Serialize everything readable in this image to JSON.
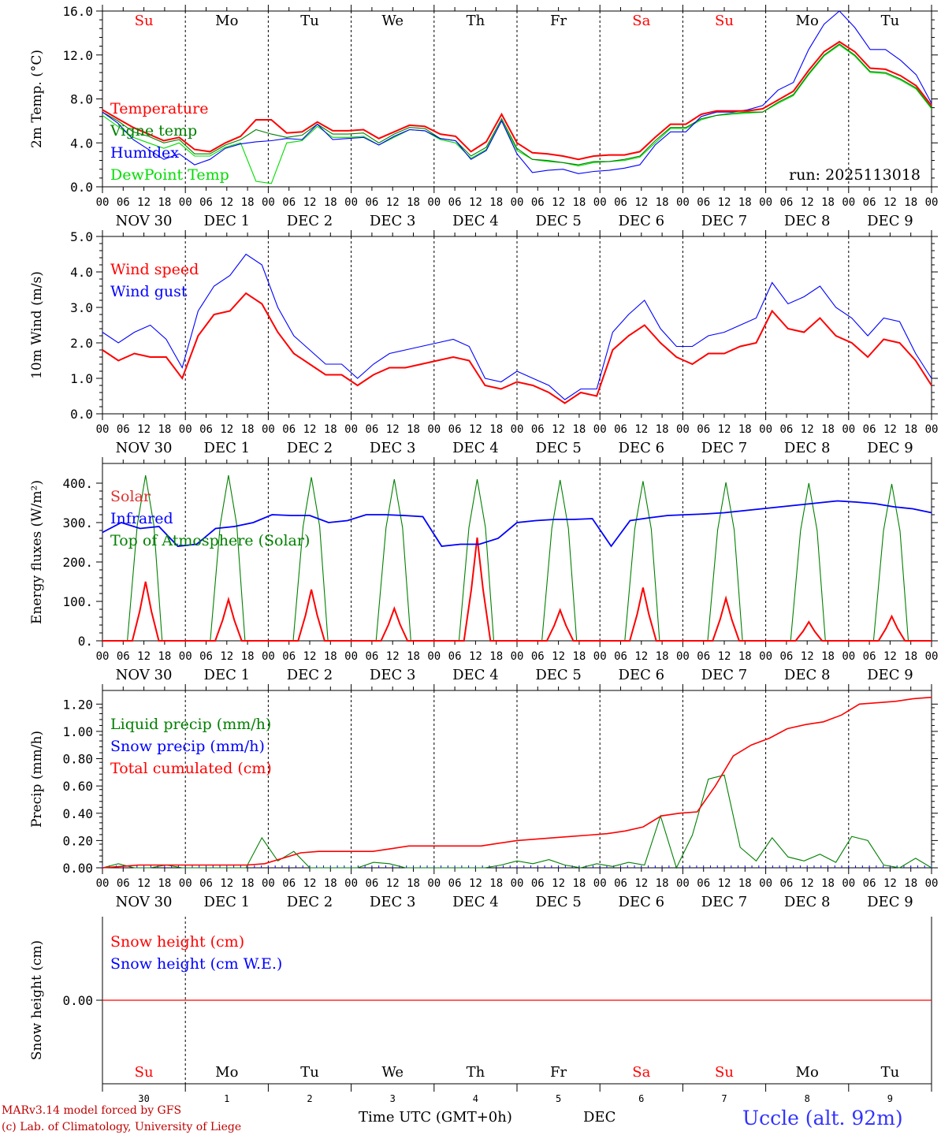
{
  "footer": {
    "model_line": "MARv3.14 model forced by GFS",
    "lab_line": "(c) Lab. of Climatology, University of Liege",
    "xlabel": "Time UTC (GMT+0h)",
    "month": "DEC",
    "station": "Uccle (alt. 92m)"
  },
  "colors": {
    "red": "#ff0000",
    "green": "#008000",
    "blue": "#0000ff",
    "lightgreen": "#00dd00"
  },
  "chart_data": [
    {
      "type": "line",
      "id": "temp",
      "title": "",
      "ylabel": "2m Temp. (°C)",
      "ylim": [
        0,
        16
      ],
      "yticks": [
        "0.0",
        "4.0",
        "8.0",
        "12.0",
        "16.0"
      ],
      "run_label": "run: 2025113018",
      "day_names": [
        "Su",
        "Mo",
        "Tu",
        "We",
        "Th",
        "Fr",
        "Sa",
        "Su",
        "Mo",
        "Tu"
      ],
      "hour_ticks": [
        "00",
        "06",
        "12",
        "18"
      ],
      "date_labels": [
        "NOV 30",
        "DEC  1",
        "DEC  2",
        "DEC  3",
        "DEC  4",
        "DEC  5",
        "DEC  6",
        "DEC  7",
        "DEC  8",
        "DEC  9"
      ],
      "legend": [
        "Temperature",
        "Vigne temp",
        "Humidex",
        "DewPoint Temp"
      ],
      "series": [
        {
          "name": "Temperature",
          "color": "red",
          "values": [
            7.0,
            6.2,
            5.4,
            4.8,
            4.2,
            4.5,
            3.4,
            3.2,
            4.0,
            4.6,
            6.1,
            6.1,
            4.9,
            5.0,
            5.9,
            5.1,
            5.1,
            5.2,
            4.4,
            5.0,
            5.6,
            5.5,
            4.8,
            4.6,
            3.2,
            4.1,
            6.6,
            4.0,
            3.1,
            3.0,
            2.8,
            2.5,
            2.8,
            2.9,
            2.9,
            3.2,
            4.5,
            5.7,
            5.7,
            6.6,
            6.9,
            6.9,
            6.9,
            7.1,
            7.9,
            8.7,
            10.6,
            12.3,
            13.2,
            12.3,
            10.8,
            10.7,
            10.1,
            9.2,
            7.4
          ]
        },
        {
          "name": "Vigne temp",
          "color": "green",
          "values": [
            6.8,
            6.0,
            5.0,
            4.6,
            4.0,
            4.3,
            3.0,
            3.0,
            3.8,
            4.3,
            5.2,
            4.8,
            4.5,
            4.7,
            5.7,
            4.8,
            4.8,
            4.9,
            4.0,
            4.8,
            5.4,
            5.3,
            4.4,
            4.2,
            2.8,
            3.6,
            6.2,
            3.5,
            2.5,
            2.4,
            2.2,
            2.0,
            2.3,
            2.3,
            2.5,
            2.8,
            4.2,
            5.4,
            5.4,
            6.2,
            6.5,
            6.7,
            6.8,
            6.8,
            7.7,
            8.4,
            10.3,
            12.0,
            13.0,
            12.0,
            10.5,
            10.4,
            9.8,
            9.0,
            7.2
          ]
        },
        {
          "name": "Humidex",
          "color": "blue",
          "values": [
            6.8,
            5.8,
            4.3,
            3.4,
            2.5,
            3.0,
            2.0,
            2.5,
            3.5,
            3.9,
            4.1,
            4.2,
            4.4,
            4.3,
            5.7,
            4.3,
            4.4,
            4.5,
            3.8,
            4.6,
            5.2,
            5.1,
            4.4,
            4.2,
            2.5,
            3.3,
            6.0,
            3.0,
            1.3,
            1.5,
            1.6,
            1.2,
            1.4,
            1.5,
            1.7,
            2.0,
            3.8,
            5.0,
            5.0,
            6.4,
            6.8,
            6.8,
            7.0,
            7.4,
            8.8,
            9.5,
            12.5,
            14.8,
            16.0,
            14.5,
            12.5,
            12.5,
            11.5,
            10.2,
            7.6
          ]
        },
        {
          "name": "DewPoint Temp",
          "color": "lightgreen",
          "values": [
            6.5,
            5.5,
            4.5,
            4.0,
            3.5,
            4.0,
            2.8,
            2.8,
            3.6,
            4.0,
            0.5,
            0.3,
            4.0,
            4.2,
            5.5,
            4.5,
            4.5,
            4.6,
            3.8,
            4.5,
            5.2,
            5.1,
            4.3,
            4.0,
            2.6,
            3.4,
            6.0,
            3.3,
            2.5,
            2.3,
            2.2,
            1.9,
            2.2,
            2.3,
            2.4,
            2.7,
            4.0,
            5.3,
            5.3,
            6.1,
            6.5,
            6.6,
            6.7,
            6.8,
            7.6,
            8.3,
            10.2,
            11.9,
            12.9,
            11.9,
            10.4,
            10.3,
            9.7,
            8.9,
            7.1
          ]
        }
      ]
    },
    {
      "type": "line",
      "id": "wind",
      "ylabel": "10m Wind (m/s)",
      "ylim": [
        0,
        5
      ],
      "yticks": [
        "0.0",
        "1.0",
        "2.0",
        "3.0",
        "4.0",
        "5.0"
      ],
      "hour_ticks": [
        "00",
        "06",
        "12",
        "18"
      ],
      "date_labels": [
        "NOV 30",
        "DEC  1",
        "DEC  2",
        "DEC  3",
        "DEC  4",
        "DEC  5",
        "DEC  6",
        "DEC  7",
        "DEC  8",
        "DEC  9"
      ],
      "legend": [
        "Wind speed",
        "Wind gust"
      ],
      "series": [
        {
          "name": "Wind speed",
          "color": "red",
          "values": [
            1.8,
            1.5,
            1.7,
            1.6,
            1.6,
            1.0,
            2.2,
            2.8,
            2.9,
            3.4,
            3.1,
            2.3,
            1.7,
            1.4,
            1.1,
            1.1,
            0.8,
            1.1,
            1.3,
            1.3,
            1.4,
            1.5,
            1.6,
            1.5,
            0.8,
            0.7,
            0.9,
            0.8,
            0.6,
            0.3,
            0.6,
            0.5,
            1.8,
            2.2,
            2.5,
            2.0,
            1.6,
            1.4,
            1.7,
            1.7,
            1.9,
            2.0,
            2.9,
            2.4,
            2.3,
            2.7,
            2.2,
            2.0,
            1.6,
            2.1,
            2.0,
            1.5,
            0.8
          ]
        },
        {
          "name": "Wind gust",
          "color": "blue",
          "values": [
            2.3,
            2.0,
            2.3,
            2.5,
            2.1,
            1.3,
            2.9,
            3.6,
            3.9,
            4.5,
            4.2,
            3.0,
            2.2,
            1.8,
            1.4,
            1.4,
            1.0,
            1.4,
            1.7,
            1.8,
            1.9,
            2.0,
            2.1,
            1.9,
            1.0,
            0.9,
            1.2,
            1.0,
            0.8,
            0.4,
            0.7,
            0.7,
            2.3,
            2.8,
            3.2,
            2.4,
            1.9,
            1.9,
            2.2,
            2.3,
            2.5,
            2.7,
            3.7,
            3.1,
            3.3,
            3.6,
            3.0,
            2.7,
            2.2,
            2.7,
            2.6,
            1.7,
            1.0
          ]
        }
      ]
    },
    {
      "type": "line",
      "id": "flux",
      "ylabel": "Energy fluxes (W/m²)",
      "ylim": [
        0,
        450
      ],
      "yticks": [
        "0.",
        "100.",
        "200.",
        "300.",
        "400."
      ],
      "hour_ticks": [
        "00",
        "06",
        "12",
        "18"
      ],
      "date_labels": [
        "NOV 30",
        "DEC  1",
        "DEC  2",
        "DEC  3",
        "DEC  4",
        "DEC  5",
        "DEC  6",
        "DEC  7",
        "DEC  8",
        "DEC  9"
      ],
      "legend": [
        "Solar",
        "Infrared",
        "Top of Atmosphere (Solar)"
      ],
      "toa_peaks": [
        420,
        420,
        415,
        410,
        410,
        408,
        405,
        402,
        400,
        398
      ],
      "solar_peaks": [
        150,
        105,
        130,
        82,
        262,
        78,
        135,
        108,
        48,
        62
      ],
      "infrared": [
        275,
        300,
        285,
        290,
        240,
        245,
        285,
        290,
        300,
        320,
        318,
        318,
        300,
        305,
        320,
        320,
        318,
        315,
        240,
        245,
        245,
        260,
        300,
        305,
        308,
        308,
        310,
        240,
        305,
        312,
        318,
        320,
        322,
        325,
        330,
        335,
        340,
        345,
        350,
        355,
        352,
        348,
        340,
        335,
        325
      ]
    },
    {
      "type": "line",
      "id": "precip",
      "ylabel": "Precip (mm/h)",
      "ylim": [
        0,
        1.3
      ],
      "yticks": [
        "0.00",
        "0.20",
        "0.40",
        "0.60",
        "0.80",
        "1.00",
        "1.20"
      ],
      "hour_ticks": [
        "00",
        "06",
        "12",
        "18"
      ],
      "date_labels": [
        "NOV 30",
        "DEC  1",
        "DEC  2",
        "DEC  3",
        "DEC  4",
        "DEC  5",
        "DEC  6",
        "DEC  7",
        "DEC  8",
        "DEC  9"
      ],
      "legend": [
        "Liquid precip (mm/h)",
        "Snow precip (mm/h)",
        "Total cumulated (cm)"
      ],
      "cumulated": [
        0.0,
        0.01,
        0.02,
        0.02,
        0.02,
        0.02,
        0.02,
        0.02,
        0.02,
        0.03,
        0.07,
        0.11,
        0.12,
        0.12,
        0.12,
        0.12,
        0.14,
        0.16,
        0.16,
        0.16,
        0.16,
        0.16,
        0.18,
        0.2,
        0.21,
        0.22,
        0.23,
        0.24,
        0.25,
        0.27,
        0.3,
        0.38,
        0.4,
        0.41,
        0.6,
        0.82,
        0.9,
        0.95,
        1.02,
        1.05,
        1.07,
        1.12,
        1.2,
        1.21,
        1.22,
        1.24,
        1.25
      ],
      "liquid": [
        0.0,
        0.03,
        0.0,
        0.0,
        0.02,
        0.0,
        0.0,
        0.0,
        0.0,
        0.0,
        0.22,
        0.05,
        0.12,
        0.0,
        0.0,
        0.0,
        0.0,
        0.04,
        0.03,
        0.0,
        0.0,
        0.0,
        0.0,
        0.0,
        0.0,
        0.02,
        0.05,
        0.03,
        0.06,
        0.02,
        0.0,
        0.03,
        0.01,
        0.04,
        0.02,
        0.38,
        0.0,
        0.24,
        0.65,
        0.68,
        0.15,
        0.05,
        0.22,
        0.08,
        0.05,
        0.1,
        0.04,
        0.23,
        0.2,
        0.02,
        0.0,
        0.07,
        0.0
      ]
    },
    {
      "type": "line",
      "id": "snow",
      "ylabel": "Snow height (cm)",
      "ylim": [
        -1,
        1
      ],
      "yticks": [
        "0.00"
      ],
      "legend": [
        "Snow height (cm)",
        "Snow height (cm W.E.)"
      ],
      "day_names": [
        "Su",
        "Mo",
        "Tu",
        "We",
        "Th",
        "Fr",
        "Sa",
        "Su",
        "Mo",
        "Tu"
      ],
      "day_numbers": [
        "30",
        "1",
        "2",
        "3",
        "4",
        "5",
        "6",
        "7",
        "8",
        "9"
      ]
    }
  ]
}
